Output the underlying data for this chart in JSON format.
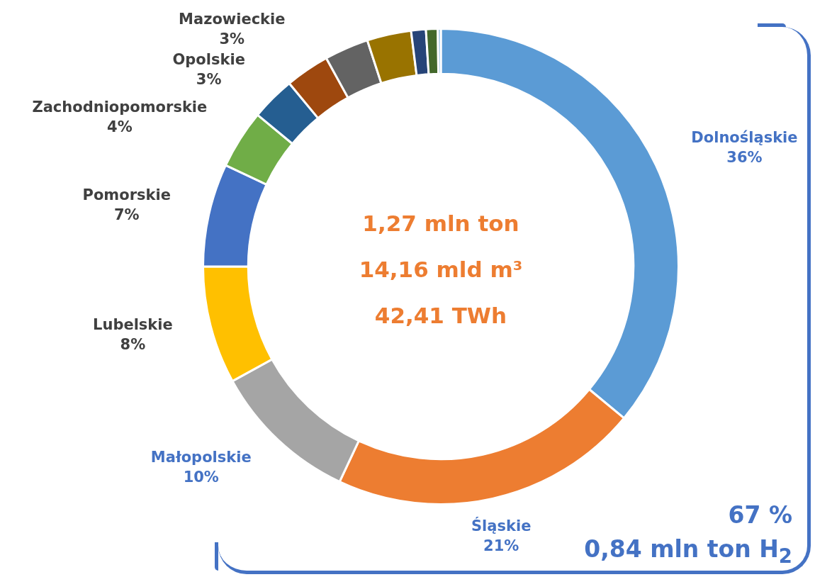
{
  "chart_data": {
    "type": "donut",
    "categories": [
      "Dolnośląskie",
      "Śląskie",
      "Małopolskie",
      "Lubelskie",
      "Pomorskie",
      "Zachodniopomorskie",
      "Opolskie",
      "Mazowieckie",
      null,
      null,
      null,
      null,
      null
    ],
    "values": [
      36,
      21,
      10,
      8,
      7,
      4,
      3,
      3,
      3,
      3,
      1,
      0.8,
      0.2
    ],
    "value_labels": [
      "36%",
      "21%",
      "10%",
      "8%",
      "7%",
      "4%",
      "3%",
      "3%",
      null,
      null,
      null,
      null,
      null
    ],
    "colors": [
      "#5b9bd5",
      "#ed7d31",
      "#a5a5a5",
      "#ffc000",
      "#4472c4",
      "#70ad47",
      "#255e91",
      "#9e480e",
      "#636363",
      "#997300",
      "#264478",
      "#43682b",
      "#7cafdd"
    ],
    "legend": false,
    "annotations": [
      "1,27 mln ton",
      "14,16 mld m³",
      "42,41 TWh",
      "67 %",
      "0,84 mln ton H$_{2}$"
    ]
  }
}
